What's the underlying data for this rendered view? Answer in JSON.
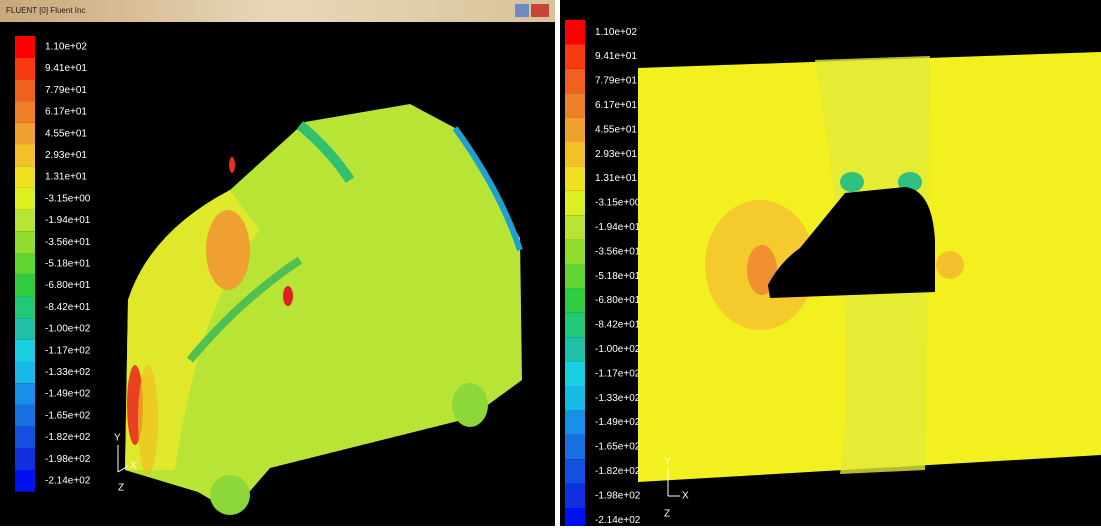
{
  "left_window": {
    "title": "FLUENT [0] Fluent Inc",
    "colorbar_labels": [
      "1.10e+02",
      "9.41e+01",
      "7.79e+01",
      "6.17e+01",
      "4.55e+01",
      "2.93e+01",
      "1.31e+01",
      "-3.15e+00",
      "-1.94e+01",
      "-3.56e+01",
      "-5.18e+01",
      "-6.80e+01",
      "-8.42e+01",
      "-1.00e+02",
      "-1.17e+02",
      "-1.33e+02",
      "-1.49e+02",
      "-1.65e+02",
      "-1.82e+02",
      "-1.98e+02",
      "-2.14e+02"
    ],
    "axes": {
      "y": "Y",
      "x": "X",
      "z": "Z"
    }
  },
  "right_window": {
    "colorbar_labels": [
      "1.10e+02",
      "9.41e+01",
      "7.79e+01",
      "6.17e+01",
      "4.55e+01",
      "2.93e+01",
      "1.31e+01",
      "-3.15e+00",
      "-1.94e+01",
      "-3.56e+01",
      "-5.18e+01",
      "-6.80e+01",
      "-8.42e+01",
      "-1.00e+02",
      "-1.17e+02",
      "-1.33e+02",
      "-1.49e+02",
      "-1.65e+02",
      "-1.82e+02",
      "-1.98e+02",
      "-2.14e+02"
    ],
    "axes": {
      "y": "Y",
      "x": "X",
      "z": "Z"
    }
  }
}
